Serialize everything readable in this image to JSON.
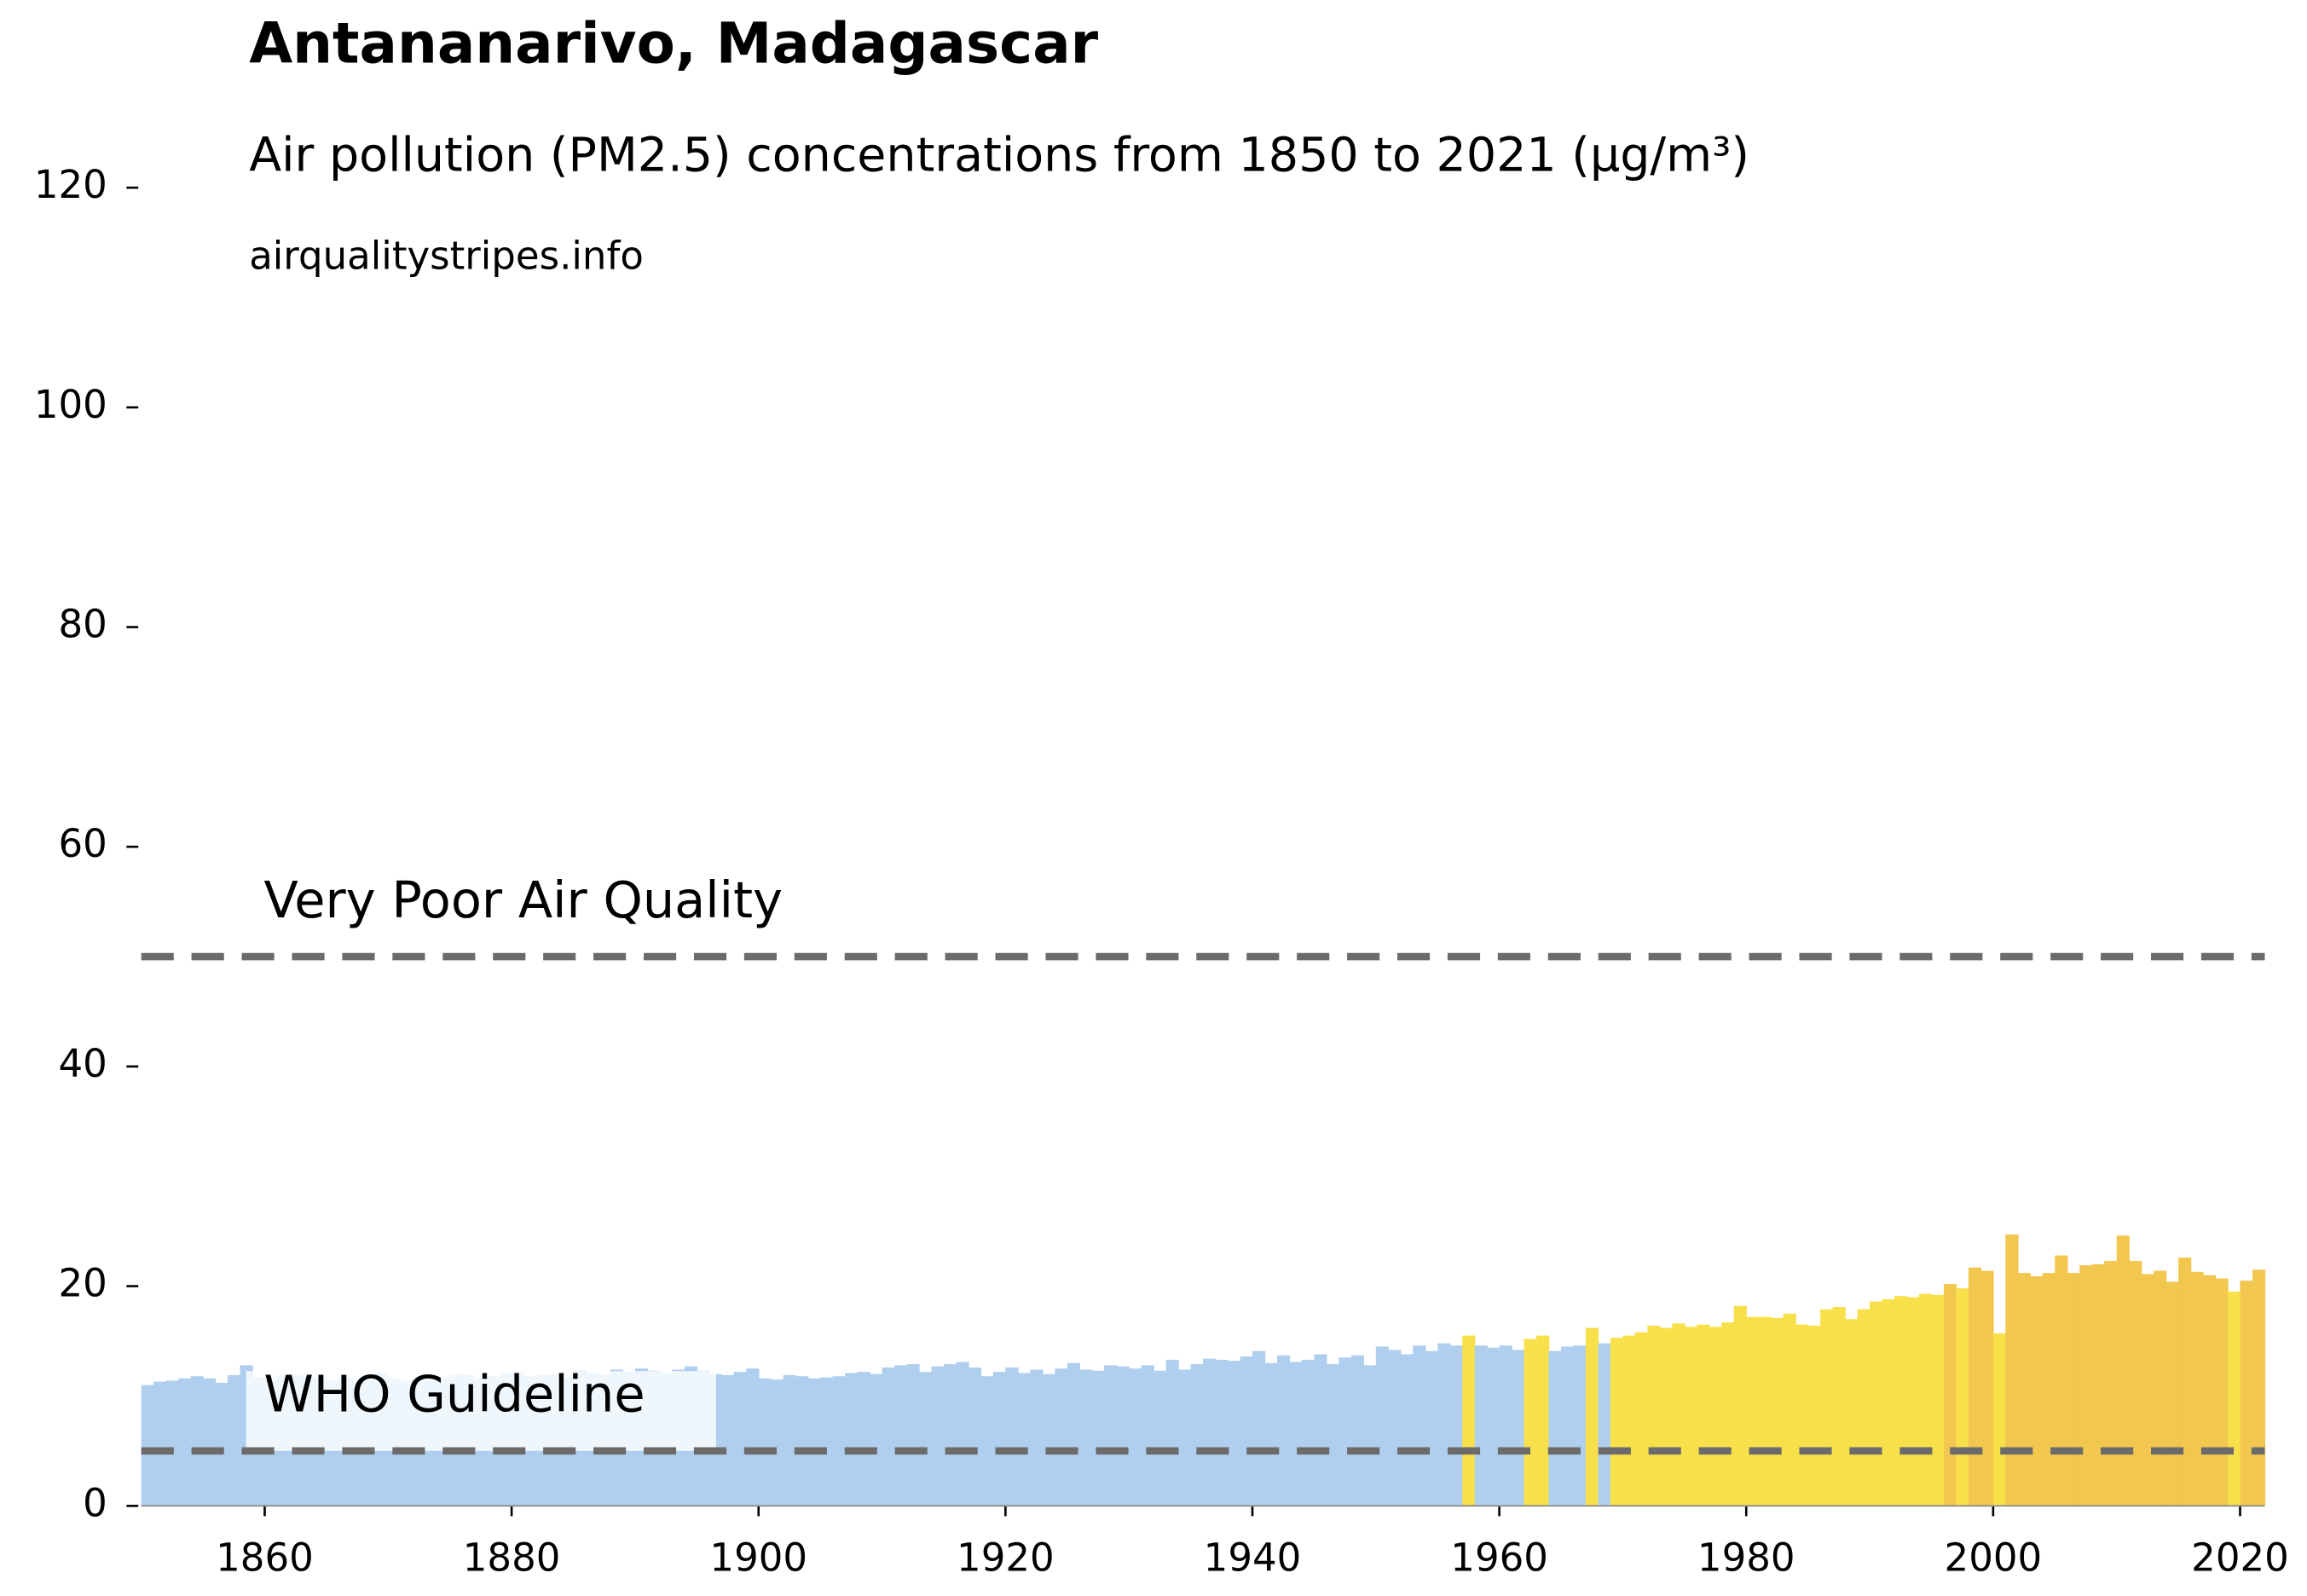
{
  "chart_data": {
    "type": "bar",
    "title": "Antananarivo, Madagascar",
    "subtitle": "Air pollution (PM2.5) concentrations from 1850 to 2021 (µg/m³)",
    "source": "airqualitystripes.info",
    "x": [
      1850,
      1851,
      1852,
      1853,
      1854,
      1855,
      1856,
      1857,
      1858,
      1859,
      1860,
      1861,
      1862,
      1863,
      1864,
      1865,
      1866,
      1867,
      1868,
      1869,
      1870,
      1871,
      1872,
      1873,
      1874,
      1875,
      1876,
      1877,
      1878,
      1879,
      1880,
      1881,
      1882,
      1883,
      1884,
      1885,
      1886,
      1887,
      1888,
      1889,
      1890,
      1891,
      1892,
      1893,
      1894,
      1895,
      1896,
      1897,
      1898,
      1899,
      1900,
      1901,
      1902,
      1903,
      1904,
      1905,
      1906,
      1907,
      1908,
      1909,
      1910,
      1911,
      1912,
      1913,
      1914,
      1915,
      1916,
      1917,
      1918,
      1919,
      1920,
      1921,
      1922,
      1923,
      1924,
      1925,
      1926,
      1927,
      1928,
      1929,
      1930,
      1931,
      1932,
      1933,
      1934,
      1935,
      1936,
      1937,
      1938,
      1939,
      1940,
      1941,
      1942,
      1943,
      1944,
      1945,
      1946,
      1947,
      1948,
      1949,
      1950,
      1951,
      1952,
      1953,
      1954,
      1955,
      1956,
      1957,
      1958,
      1959,
      1960,
      1961,
      1962,
      1963,
      1964,
      1965,
      1966,
      1967,
      1968,
      1969,
      1970,
      1971,
      1972,
      1973,
      1974,
      1975,
      1976,
      1977,
      1978,
      1979,
      1980,
      1981,
      1982,
      1983,
      1984,
      1985,
      1986,
      1987,
      1988,
      1989,
      1990,
      1991,
      1992,
      1993,
      1994,
      1995,
      1996,
      1997,
      1998,
      1999,
      2000,
      2001,
      2002,
      2003,
      2004,
      2005,
      2006,
      2007,
      2008,
      2009,
      2010,
      2011,
      2012,
      2013,
      2014,
      2015,
      2016,
      2017,
      2018,
      2019,
      2020,
      2021
    ],
    "values": [
      11.0,
      11.3,
      11.4,
      11.6,
      11.8,
      11.6,
      11.2,
      11.9,
      12.8,
      11.7,
      11.5,
      11.9,
      12.0,
      11.8,
      11.6,
      11.4,
      11.7,
      11.5,
      11.9,
      12.1,
      11.6,
      11.4,
      11.5,
      11.8,
      11.7,
      12.0,
      11.9,
      11.6,
      11.8,
      12.1,
      12.2,
      11.8,
      11.9,
      12.0,
      11.7,
      12.3,
      12.1,
      11.9,
      12.4,
      12.2,
      12.5,
      12.3,
      12.1,
      12.4,
      12.7,
      12.3,
      12.0,
      11.9,
      12.2,
      12.5,
      11.6,
      11.5,
      11.9,
      11.8,
      11.6,
      11.7,
      11.8,
      12.1,
      12.2,
      12.0,
      12.6,
      12.8,
      12.9,
      12.2,
      12.7,
      12.9,
      13.1,
      12.6,
      11.8,
      12.2,
      12.6,
      12.1,
      12.4,
      12.0,
      12.5,
      13.0,
      12.4,
      12.3,
      12.8,
      12.7,
      12.5,
      12.8,
      12.3,
      13.3,
      12.4,
      12.9,
      13.4,
      13.3,
      13.2,
      13.6,
      14.1,
      13.0,
      13.7,
      13.1,
      13.3,
      13.8,
      12.9,
      13.5,
      13.7,
      12.8,
      14.5,
      14.2,
      13.8,
      14.6,
      14.1,
      14.8,
      14.6,
      15.5,
      14.6,
      14.4,
      14.6,
      14.2,
      15.2,
      15.5,
      14.1,
      14.5,
      14.6,
      16.2,
      14.8,
      15.3,
      15.5,
      15.8,
      16.4,
      16.2,
      16.6,
      16.3,
      16.5,
      16.3,
      16.7,
      18.2,
      17.2,
      17.2,
      17.1,
      17.5,
      16.5,
      16.4,
      17.9,
      18.1,
      17.0,
      17.9,
      18.6,
      18.8,
      19.1,
      19.0,
      19.3,
      19.2,
      20.2,
      19.8,
      21.7,
      21.4,
      15.7,
      24.7,
      21.2,
      20.9,
      21.2,
      22.8,
      21.2,
      21.9,
      22.0,
      22.3,
      24.6,
      22.3,
      21.1,
      21.4,
      20.4,
      22.6,
      21.3,
      21.0,
      20.7,
      19.5,
      20.5,
      21.5
    ],
    "colors": [
      "#b0cfee",
      "#b0cfee",
      "#b0cfee",
      "#b0cfee",
      "#b0cfee",
      "#b0cfee",
      "#b0cfee",
      "#b0cfee",
      "#b0cfee",
      "#b0cfee",
      "#b0cfee",
      "#b0cfee",
      "#b0cfee",
      "#b0cfee",
      "#b0cfee",
      "#b0cfee",
      "#b0cfee",
      "#b0cfee",
      "#b0cfee",
      "#b0cfee",
      "#b0cfee",
      "#b0cfee",
      "#b0cfee",
      "#b0cfee",
      "#b0cfee",
      "#b0cfee",
      "#b0cfee",
      "#b0cfee",
      "#b0cfee",
      "#b0cfee",
      "#b0cfee",
      "#b0cfee",
      "#b0cfee",
      "#b0cfee",
      "#b0cfee",
      "#b0cfee",
      "#b0cfee",
      "#b0cfee",
      "#b0cfee",
      "#b0cfee",
      "#b0cfee",
      "#b0cfee",
      "#b0cfee",
      "#b0cfee",
      "#b0cfee",
      "#b0cfee",
      "#b0cfee",
      "#b0cfee",
      "#b0cfee",
      "#b0cfee",
      "#b0cfee",
      "#b0cfee",
      "#b0cfee",
      "#b0cfee",
      "#b0cfee",
      "#b0cfee",
      "#b0cfee",
      "#b0cfee",
      "#b0cfee",
      "#b0cfee",
      "#b0cfee",
      "#b0cfee",
      "#b0cfee",
      "#b0cfee",
      "#b0cfee",
      "#b0cfee",
      "#b0cfee",
      "#b0cfee",
      "#b0cfee",
      "#b0cfee",
      "#b0cfee",
      "#b0cfee",
      "#b0cfee",
      "#b0cfee",
      "#b0cfee",
      "#b0cfee",
      "#b0cfee",
      "#b0cfee",
      "#b0cfee",
      "#b0cfee",
      "#b0cfee",
      "#b0cfee",
      "#b0cfee",
      "#b0cfee",
      "#b0cfee",
      "#b0cfee",
      "#b0cfee",
      "#b0cfee",
      "#b0cfee",
      "#b0cfee",
      "#b0cfee",
      "#b0cfee",
      "#b0cfee",
      "#b0cfee",
      "#b0cfee",
      "#b0cfee",
      "#b0cfee",
      "#b0cfee",
      "#b0cfee",
      "#b0cfee",
      "#b0cfee",
      "#b0cfee",
      "#b0cfee",
      "#b0cfee",
      "#b0cfee",
      "#b0cfee",
      "#b0cfee",
      "#f8e04a",
      "#b0cfee",
      "#b0cfee",
      "#b0cfee",
      "#b0cfee",
      "#f8e04a",
      "#f8e04a",
      "#b0cfee",
      "#b0cfee",
      "#b0cfee",
      "#f8e04a",
      "#b0cfee",
      "#f8e04a",
      "#f8e04a",
      "#f8e04a",
      "#f8e04a",
      "#f8e04a",
      "#f8e04a",
      "#f8e04a",
      "#f8e04a",
      "#f8e04a",
      "#f8e04a",
      "#f8e04a",
      "#f8e04a",
      "#f8e04a",
      "#f8e04a",
      "#f8e04a",
      "#f8e04a",
      "#f8e04a",
      "#f8e04a",
      "#f8e04a",
      "#f8e04a",
      "#f8e04a",
      "#f8e04a",
      "#f8e04a",
      "#f8e04a",
      "#f8e04a",
      "#f8e04a",
      "#f8e04a",
      "#f2c74f",
      "#f8e04a",
      "#f2c74f",
      "#f2c74f",
      "#f8e04a",
      "#f2c74f",
      "#f2c74f",
      "#f2c74f",
      "#f2c74f",
      "#f2c74f",
      "#f2c74f",
      "#f2c74f",
      "#f2c74f",
      "#f2c74f",
      "#f2c74f",
      "#f2c74f",
      "#f2c74f",
      "#f2c74f",
      "#f2c74f",
      "#f2c74f",
      "#f2c74f",
      "#f2c74f",
      "#f2c74f",
      "#f8e04a",
      "#f2c74f",
      "#f2c74f"
    ],
    "annotations": [
      {
        "text": "Very Poor Air Quality",
        "y": 50
      },
      {
        "text": "WHO Guideline",
        "y": 5
      }
    ],
    "line_color": "#6b6b6b",
    "xlim": [
      1850,
      2022
    ],
    "ylim": [
      0,
      120
    ],
    "xticks": [
      1860,
      1880,
      1900,
      1920,
      1940,
      1960,
      1980,
      2000,
      2020
    ],
    "yticks": [
      0,
      20,
      40,
      60,
      80,
      100,
      120
    ]
  }
}
